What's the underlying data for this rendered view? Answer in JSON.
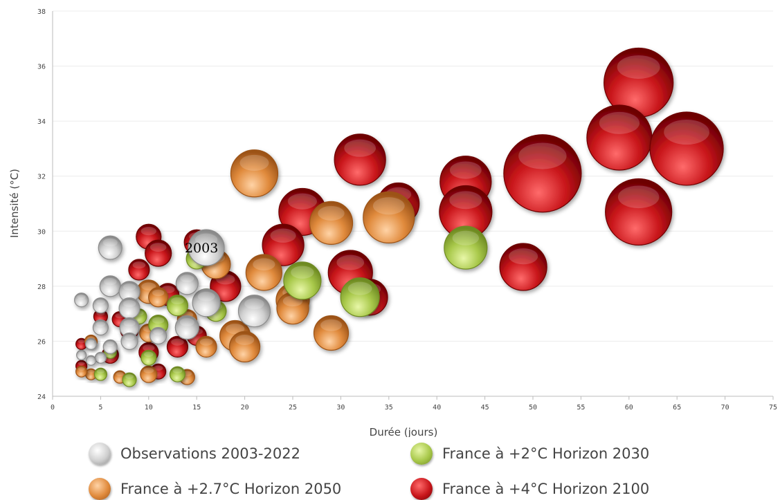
{
  "chart_data": {
    "type": "scatter",
    "subtype": "bubble",
    "xlabel": "Durée  (jours)",
    "ylabel": "Intensité  (°C)",
    "xlim": [
      0,
      75
    ],
    "ylim": [
      24,
      38
    ],
    "xticks": [
      0,
      5,
      10,
      15,
      20,
      25,
      30,
      35,
      40,
      45,
      50,
      55,
      60,
      65,
      70,
      75
    ],
    "yticks": [
      24,
      26,
      28,
      30,
      32,
      34,
      36,
      38
    ],
    "grid": "horizontal",
    "legend_position": "bottom",
    "annotation": {
      "text": "2003",
      "x": 15.5,
      "y": 29.4
    },
    "series": [
      {
        "name": "France à +4°C Horizon 2100",
        "color": "#c8151a",
        "points": [
          {
            "x": 61,
            "y": 35.4,
            "r": 50
          },
          {
            "x": 59,
            "y": 33.4,
            "r": 47
          },
          {
            "x": 66,
            "y": 33.0,
            "r": 53
          },
          {
            "x": 61,
            "y": 30.7,
            "r": 48
          },
          {
            "x": 51,
            "y": 32.1,
            "r": 56
          },
          {
            "x": 43,
            "y": 31.8,
            "r": 37
          },
          {
            "x": 43,
            "y": 30.7,
            "r": 38
          },
          {
            "x": 49,
            "y": 28.7,
            "r": 34
          },
          {
            "x": 32,
            "y": 32.6,
            "r": 37
          },
          {
            "x": 36,
            "y": 31.0,
            "r": 30
          },
          {
            "x": 26,
            "y": 30.7,
            "r": 34
          },
          {
            "x": 24,
            "y": 29.5,
            "r": 30
          },
          {
            "x": 31,
            "y": 28.5,
            "r": 32
          },
          {
            "x": 33,
            "y": 27.6,
            "r": 26
          },
          {
            "x": 18,
            "y": 28.0,
            "r": 22
          },
          {
            "x": 15,
            "y": 29.6,
            "r": 18
          },
          {
            "x": 10,
            "y": 29.8,
            "r": 18
          },
          {
            "x": 11,
            "y": 29.2,
            "r": 19
          },
          {
            "x": 9,
            "y": 28.6,
            "r": 15
          },
          {
            "x": 12,
            "y": 27.7,
            "r": 16
          },
          {
            "x": 8,
            "y": 26.4,
            "r": 13
          },
          {
            "x": 10,
            "y": 25.6,
            "r": 14
          },
          {
            "x": 13,
            "y": 25.8,
            "r": 15
          },
          {
            "x": 15,
            "y": 26.2,
            "r": 14
          },
          {
            "x": 11,
            "y": 24.9,
            "r": 11
          },
          {
            "x": 6,
            "y": 25.5,
            "r": 12
          },
          {
            "x": 3,
            "y": 25.9,
            "r": 8
          },
          {
            "x": 3,
            "y": 25.1,
            "r": 8
          },
          {
            "x": 5,
            "y": 26.9,
            "r": 10
          },
          {
            "x": 7,
            "y": 26.8,
            "r": 11
          }
        ]
      },
      {
        "name": "France à +2.7°C Horizon 2050",
        "color": "#e08a3c",
        "points": [
          {
            "x": 21,
            "y": 32.1,
            "r": 34
          },
          {
            "x": 35,
            "y": 30.5,
            "r": 37
          },
          {
            "x": 29,
            "y": 30.3,
            "r": 31
          },
          {
            "x": 22,
            "y": 28.5,
            "r": 26
          },
          {
            "x": 25,
            "y": 27.5,
            "r": 24
          },
          {
            "x": 25,
            "y": 27.2,
            "r": 23
          },
          {
            "x": 29,
            "y": 26.3,
            "r": 25
          },
          {
            "x": 19,
            "y": 26.2,
            "r": 22
          },
          {
            "x": 20,
            "y": 25.8,
            "r": 22
          },
          {
            "x": 17,
            "y": 28.8,
            "r": 21
          },
          {
            "x": 16,
            "y": 25.8,
            "r": 15
          },
          {
            "x": 10,
            "y": 27.8,
            "r": 17
          },
          {
            "x": 11,
            "y": 27.6,
            "r": 14
          },
          {
            "x": 14,
            "y": 26.8,
            "r": 14
          },
          {
            "x": 10,
            "y": 26.3,
            "r": 13
          },
          {
            "x": 10,
            "y": 24.8,
            "r": 12
          },
          {
            "x": 14,
            "y": 24.7,
            "r": 11
          },
          {
            "x": 7,
            "y": 24.7,
            "r": 9
          },
          {
            "x": 4,
            "y": 24.8,
            "r": 8
          },
          {
            "x": 3,
            "y": 24.9,
            "r": 8
          },
          {
            "x": 4,
            "y": 26.0,
            "r": 9
          }
        ]
      },
      {
        "name": "France à +2°C Horizon 2030",
        "color": "#a8c84a",
        "points": [
          {
            "x": 43,
            "y": 29.4,
            "r": 31
          },
          {
            "x": 26,
            "y": 28.2,
            "r": 27
          },
          {
            "x": 32,
            "y": 27.6,
            "r": 28
          },
          {
            "x": 15,
            "y": 29.0,
            "r": 15
          },
          {
            "x": 16,
            "y": 27.5,
            "r": 16
          },
          {
            "x": 17,
            "y": 27.1,
            "r": 15
          },
          {
            "x": 13,
            "y": 27.3,
            "r": 15
          },
          {
            "x": 11,
            "y": 26.6,
            "r": 14
          },
          {
            "x": 9,
            "y": 26.9,
            "r": 11
          },
          {
            "x": 10,
            "y": 25.4,
            "r": 11
          },
          {
            "x": 13,
            "y": 24.8,
            "r": 11
          },
          {
            "x": 8,
            "y": 24.6,
            "r": 10
          },
          {
            "x": 5,
            "y": 24.8,
            "r": 9
          },
          {
            "x": 6,
            "y": 25.6,
            "r": 9
          }
        ]
      },
      {
        "name": "Observations 2003-2022",
        "color": "#cfcfcf",
        "points": [
          {
            "x": 16,
            "y": 29.4,
            "r": 26
          },
          {
            "x": 21,
            "y": 27.1,
            "r": 23
          },
          {
            "x": 16,
            "y": 27.4,
            "r": 20
          },
          {
            "x": 14,
            "y": 28.1,
            "r": 16
          },
          {
            "x": 14,
            "y": 26.5,
            "r": 17
          },
          {
            "x": 6,
            "y": 29.4,
            "r": 17
          },
          {
            "x": 6,
            "y": 28.0,
            "r": 15
          },
          {
            "x": 8,
            "y": 27.8,
            "r": 15
          },
          {
            "x": 8,
            "y": 27.2,
            "r": 15
          },
          {
            "x": 8,
            "y": 26.5,
            "r": 14
          },
          {
            "x": 8,
            "y": 26.0,
            "r": 12
          },
          {
            "x": 11,
            "y": 26.2,
            "r": 12
          },
          {
            "x": 5,
            "y": 27.3,
            "r": 11
          },
          {
            "x": 5,
            "y": 26.5,
            "r": 11
          },
          {
            "x": 3,
            "y": 27.5,
            "r": 10
          },
          {
            "x": 6,
            "y": 25.8,
            "r": 10
          },
          {
            "x": 4,
            "y": 25.9,
            "r": 8
          },
          {
            "x": 5,
            "y": 25.4,
            "r": 8
          },
          {
            "x": 3,
            "y": 25.5,
            "r": 7
          },
          {
            "x": 4,
            "y": 25.3,
            "r": 7
          }
        ]
      }
    ]
  },
  "legend": [
    {
      "label": "Observations 2003-2022",
      "color": "#cfcfcf"
    },
    {
      "label": "France à +2°C Horizon 2030",
      "color": "#a8c84a"
    },
    {
      "label": "France à +2.7°C Horizon 2050",
      "color": "#e08a3c"
    },
    {
      "label": "France à +4°C Horizon 2100",
      "color": "#c8151a"
    }
  ]
}
